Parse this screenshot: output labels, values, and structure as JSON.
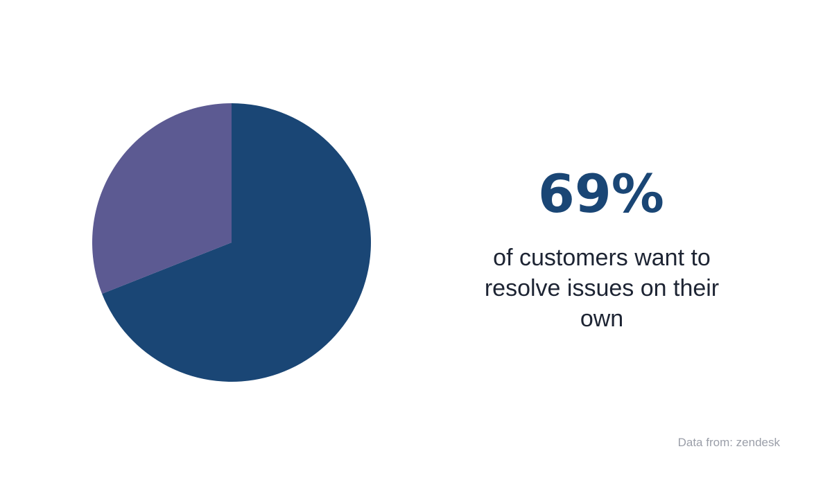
{
  "chart_data": {
    "type": "pie",
    "values": [
      69,
      31
    ],
    "value_labels": [
      "69%",
      null
    ],
    "colors": [
      "#1a4675",
      "#5c5a92"
    ],
    "caption": "of customers want to resolve issues on their own",
    "source": "Data from: zendesk"
  }
}
